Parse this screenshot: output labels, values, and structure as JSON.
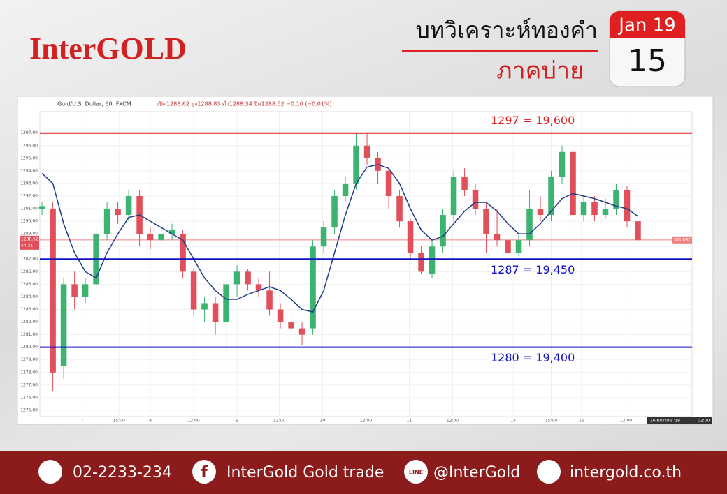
{
  "header": {
    "brand": "InterGOLD",
    "title": "บทวิเคราะห์ทองคำ",
    "session": "ภาคบ่าย",
    "calendar_month": "Jan 19",
    "calendar_day": "15"
  },
  "footer": {
    "phone": "02-2233-234",
    "facebook": "InterGold Gold trade",
    "line": "@InterGold",
    "website": "intergold.co.th"
  },
  "chart_data": {
    "type": "candlestick",
    "symbol": "Gold/U.S. Dollar, 60, FXCM",
    "ohlc_text": "เปิด1288.62 สูง1288.83 ต่ำ1288.34 ปิด1288.52 −0.10 (−0.01%)",
    "last_price": 1288.52,
    "last_price_color": "#f08080",
    "countdown": "44:21",
    "ticker": "XAUUSD",
    "date_label": "16 มกราคม '19",
    "time_label": "02:00",
    "up_color": "#3cb371",
    "down_color": "#e0505a",
    "opens": [
      1291,
      1291,
      1278.5,
      1285,
      1284,
      1285,
      1289,
      1291,
      1290.5,
      1292,
      1289,
      1288.5,
      1289,
      1289,
      1286,
      1283,
      1283.5,
      1282,
      1285,
      1286,
      1285,
      1284.5,
      1283,
      1282,
      1281.5,
      1281.5,
      1288,
      1289.5,
      1292,
      1293,
      1296,
      1295,
      1294,
      1292,
      1290,
      1287.5,
      1285.8,
      1288,
      1290.5,
      1293.5,
      1292.5,
      1291,
      1289,
      1288.5,
      1287.5,
      1288.5,
      1291,
      1290.5,
      1293.5,
      1295.5,
      1290.5,
      1291.5,
      1290.5,
      1291,
      1292.5,
      1290
    ],
    "highs": [
      1291.5,
      1291.5,
      1285.5,
      1286,
      1285.5,
      1289.5,
      1291.5,
      1291.5,
      1292.5,
      1292.5,
      1289.5,
      1289.5,
      1289.8,
      1289.3,
      1286.2,
      1284,
      1284,
      1285.5,
      1286.5,
      1286.2,
      1285.5,
      1286,
      1283.5,
      1282.5,
      1282,
      1288.5,
      1290,
      1292.5,
      1293.5,
      1297,
      1297,
      1295.5,
      1294.2,
      1292.5,
      1290.2,
      1288,
      1288.5,
      1291,
      1294,
      1294.2,
      1293,
      1291.5,
      1291,
      1289,
      1289,
      1292.5,
      1292,
      1294,
      1296,
      1295.8,
      1292,
      1292,
      1291.8,
      1293,
      1292.8,
      1290.2
    ],
    "lows": [
      1290.5,
      1276.5,
      1277.5,
      1283,
      1283.5,
      1284.5,
      1288.5,
      1289.8,
      1290,
      1288,
      1287.8,
      1288,
      1288.5,
      1285.5,
      1282.5,
      1282,
      1281,
      1279.5,
      1284,
      1284.5,
      1284,
      1282.5,
      1281.5,
      1281,
      1280.2,
      1281,
      1287.5,
      1289,
      1291.5,
      1292.5,
      1294.5,
      1293,
      1291,
      1289.5,
      1287,
      1285.8,
      1285.5,
      1287.5,
      1290,
      1292,
      1290.5,
      1287.5,
      1288,
      1287,
      1287.2,
      1288,
      1290,
      1290,
      1293,
      1289.5,
      1290,
      1290,
      1290.2,
      1290.5,
      1289.5,
      1287.5
    ],
    "closes": [
      1291.2,
      1278,
      1285,
      1284,
      1285,
      1289,
      1291,
      1290.5,
      1292,
      1289,
      1288.5,
      1289,
      1289.3,
      1286,
      1283,
      1283.5,
      1282,
      1285,
      1286,
      1285,
      1284.5,
      1283,
      1282,
      1281.5,
      1281,
      1288,
      1289.5,
      1292,
      1293,
      1296,
      1295,
      1294,
      1292,
      1290,
      1287.5,
      1286,
      1288,
      1290.5,
      1293.5,
      1292.5,
      1291,
      1289,
      1288.5,
      1287.5,
      1288.5,
      1291,
      1290.5,
      1293.5,
      1295.5,
      1290.5,
      1291.5,
      1290.5,
      1291,
      1292.5,
      1290,
      1288.5
    ],
    "moving_average": {
      "color": "#1f3c88",
      "values": [
        1293.8,
        1293,
        1289.8,
        1287.5,
        1286,
        1285.5,
        1287.5,
        1289,
        1290.3,
        1290.5,
        1290,
        1289.5,
        1289,
        1288.5,
        1287,
        1285.5,
        1284.5,
        1283.8,
        1283.8,
        1284.2,
        1284.5,
        1284.8,
        1284.5,
        1283.8,
        1283,
        1282.8,
        1284.5,
        1287.5,
        1290.5,
        1293,
        1294.3,
        1294.5,
        1294.2,
        1293,
        1291,
        1289.3,
        1288.5,
        1288.8,
        1289.8,
        1290.8,
        1291.5,
        1291.5,
        1290.8,
        1289.8,
        1289,
        1289,
        1289.8,
        1290.8,
        1291.8,
        1292.2,
        1292,
        1291.8,
        1291.5,
        1291.2,
        1291,
        1290.4
      ]
    },
    "levels": [
      {
        "value": 1297,
        "label": "1297 = 19,600",
        "color": "#e02020"
      },
      {
        "value": 1287,
        "label": "1287 = 19,450",
        "color": "#1010c8"
      },
      {
        "value": 1280,
        "label": "1280 = 19,400",
        "color": "#1010c8"
      }
    ],
    "xlim": [
      -0.2,
      60
    ],
    "ylim": [
      1274.5,
      1298.7
    ],
    "xticks": [
      {
        "value": 3.7,
        "label": "7"
      },
      {
        "value": 7.1,
        "label": "15:00"
      },
      {
        "value": 10,
        "label": "8"
      },
      {
        "value": 14,
        "label": "12:00"
      },
      {
        "value": 18,
        "label": "9"
      },
      {
        "value": 21.9,
        "label": "12:00"
      },
      {
        "value": 25.9,
        "label": "10"
      },
      {
        "value": 29.9,
        "label": "12:00"
      },
      {
        "value": 33.9,
        "label": "11"
      },
      {
        "value": 37.9,
        "label": "12:00"
      },
      {
        "value": 43.5,
        "label": "14"
      },
      {
        "value": 47,
        "label": "15:00"
      },
      {
        "value": 49.8,
        "label": "15"
      },
      {
        "value": 53.9,
        "label": "12:00"
      }
    ],
    "yticks": [
      {
        "value": 1275,
        "label": "1275.00"
      },
      {
        "value": 1276,
        "label": "1276.00"
      },
      {
        "value": 1277,
        "label": "1277.00"
      },
      {
        "value": 1278,
        "label": "1278.00"
      },
      {
        "value": 1279,
        "label": "1279.00"
      },
      {
        "value": 1280,
        "label": "1280.00"
      },
      {
        "value": 1281,
        "label": "1281.00"
      },
      {
        "value": 1282,
        "label": "1282.00"
      },
      {
        "value": 1283,
        "label": "1283.00"
      },
      {
        "value": 1284,
        "label": "1284.00"
      },
      {
        "value": 1285,
        "label": "1285.00"
      },
      {
        "value": 1286,
        "label": "1286.00"
      },
      {
        "value": 1287,
        "label": "1287.00"
      },
      {
        "value": 1288,
        "label": "1288.00"
      },
      {
        "value": 1289,
        "label": "1289.00"
      },
      {
        "value": 1290,
        "label": "1290.00"
      },
      {
        "value": 1291,
        "label": "1291.00"
      },
      {
        "value": 1292,
        "label": "1292.00"
      },
      {
        "value": 1293,
        "label": "1293.00"
      },
      {
        "value": 1294,
        "label": "1294.00"
      },
      {
        "value": 1295,
        "label": "1295.00"
      },
      {
        "value": 1296,
        "label": "1296.00"
      },
      {
        "value": 1297,
        "label": "1297.00"
      }
    ],
    "grid": true
  }
}
